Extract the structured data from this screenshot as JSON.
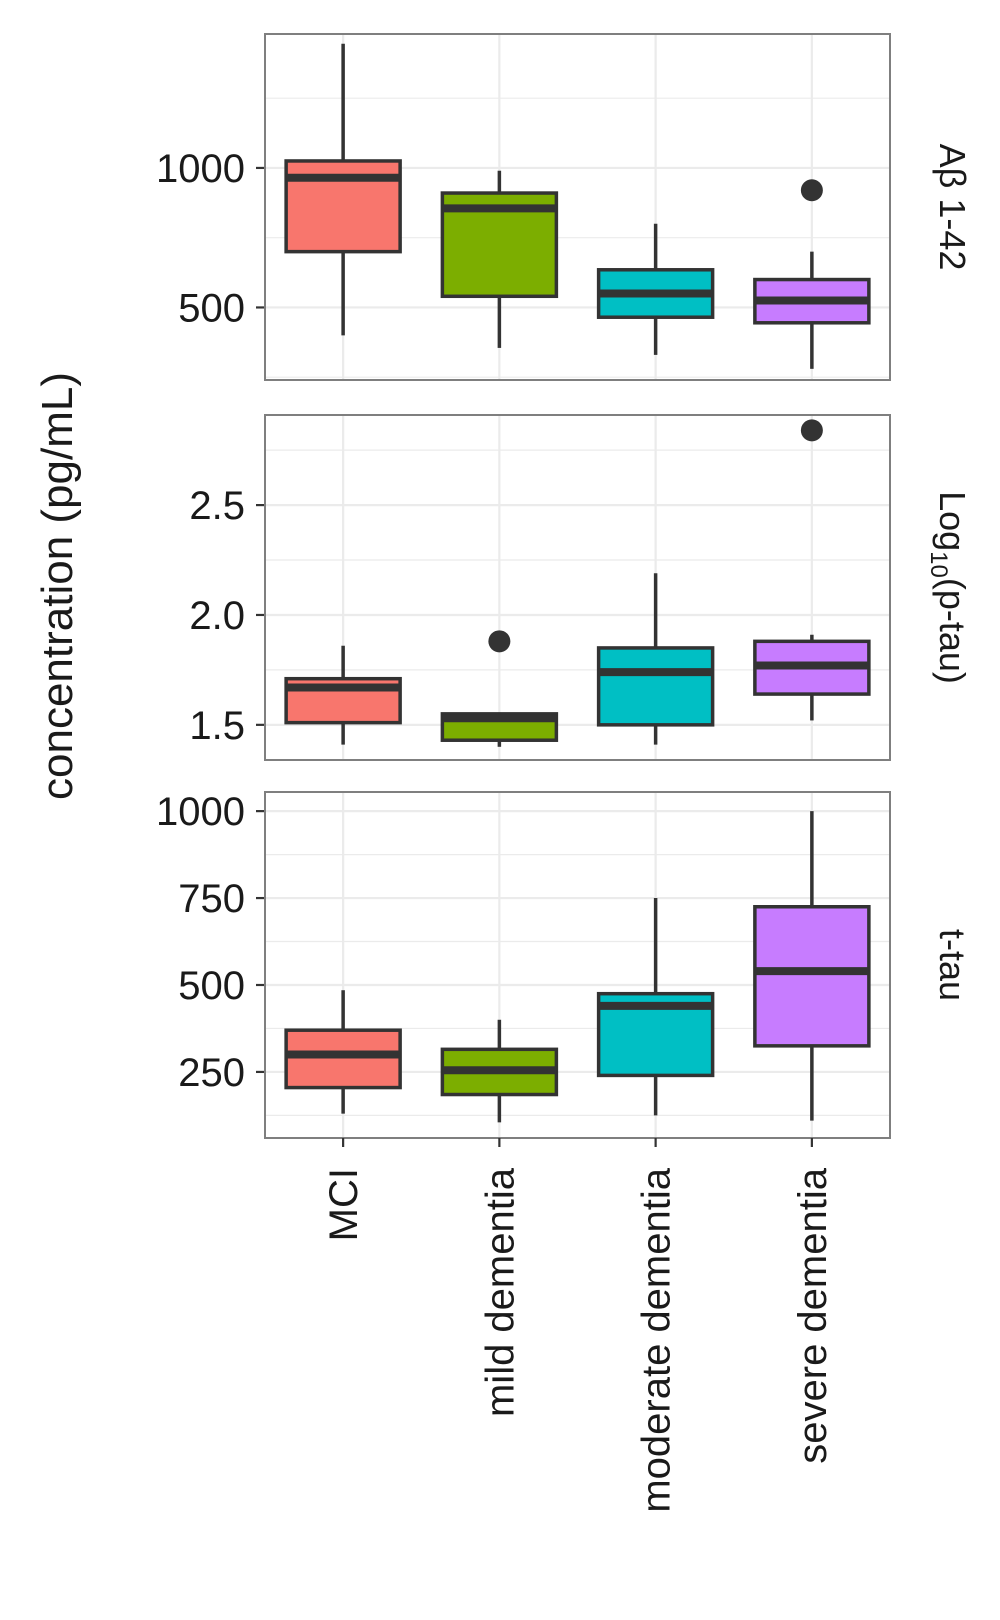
{
  "chart_data": {
    "type": "boxplot",
    "ylabel": "concentration (pg/mL)",
    "categories": [
      "MCI",
      "mild dementia",
      "moderate dementia",
      "severe dementia"
    ],
    "colors": {
      "MCI": "#F8766D",
      "mild dementia": "#7CAE00",
      "moderate dementia": "#00BFC4",
      "severe dementia": "#C77CFF",
      "panel_border": "#7f7f7f",
      "grid": "#ebebeb",
      "box_outline": "#333333"
    },
    "grid": true,
    "panels": [
      {
        "strip_label": "Aβ 1-42",
        "ylim": [
          240,
          1480
        ],
        "yticks": [
          500,
          1000
        ],
        "ytick_labels": [
          "500",
          "1000"
        ],
        "boxes": [
          {
            "category": "MCI",
            "whisker_low": 400,
            "q1": 700,
            "median": 965,
            "q3": 1025,
            "whisker_high": 1445,
            "outliers": []
          },
          {
            "category": "mild dementia",
            "whisker_low": 355,
            "q1": 540,
            "median": 855,
            "q3": 910,
            "whisker_high": 990,
            "outliers": []
          },
          {
            "category": "moderate dementia",
            "whisker_low": 330,
            "q1": 465,
            "median": 550,
            "q3": 635,
            "whisker_high": 800,
            "outliers": []
          },
          {
            "category": "severe dementia",
            "whisker_low": 280,
            "q1": 445,
            "median": 525,
            "q3": 600,
            "whisker_high": 700,
            "outliers": [
              920
            ]
          }
        ]
      },
      {
        "strip_label": "Log10(p-tau)",
        "strip_label_parts": [
          "Log",
          "10",
          "(p-tau)"
        ],
        "ylim": [
          1.34,
          2.91
        ],
        "yticks": [
          1.5,
          2.0,
          2.5
        ],
        "ytick_labels": [
          "1.5",
          "2.0",
          "2.5"
        ],
        "boxes": [
          {
            "category": "MCI",
            "whisker_low": 1.41,
            "q1": 1.51,
            "median": 1.67,
            "q3": 1.71,
            "whisker_high": 1.86,
            "outliers": []
          },
          {
            "category": "mild dementia",
            "whisker_low": 1.4,
            "q1": 1.43,
            "median": 1.53,
            "q3": 1.55,
            "whisker_high": 1.55,
            "outliers": [
              1.88
            ]
          },
          {
            "category": "moderate dementia",
            "whisker_low": 1.41,
            "q1": 1.5,
            "median": 1.74,
            "q3": 1.85,
            "whisker_high": 2.19,
            "outliers": []
          },
          {
            "category": "severe dementia",
            "whisker_low": 1.52,
            "q1": 1.64,
            "median": 1.77,
            "q3": 1.88,
            "whisker_high": 1.91,
            "outliers": [
              2.84
            ]
          }
        ]
      },
      {
        "strip_label": "t-tau",
        "ylim": [
          60,
          1055
        ],
        "yticks": [
          250,
          500,
          750,
          1000
        ],
        "ytick_labels": [
          "250",
          "500",
          "750",
          "1000"
        ],
        "boxes": [
          {
            "category": "MCI",
            "whisker_low": 130,
            "q1": 205,
            "median": 300,
            "q3": 370,
            "whisker_high": 485,
            "outliers": []
          },
          {
            "category": "mild dementia",
            "whisker_low": 105,
            "q1": 185,
            "median": 255,
            "q3": 315,
            "whisker_high": 400,
            "outliers": []
          },
          {
            "category": "moderate dementia",
            "whisker_low": 125,
            "q1": 240,
            "median": 440,
            "q3": 475,
            "whisker_high": 750,
            "outliers": []
          },
          {
            "category": "severe dementia",
            "whisker_low": 110,
            "q1": 325,
            "median": 540,
            "q3": 725,
            "whisker_high": 1000,
            "outliers": []
          }
        ]
      }
    ]
  }
}
